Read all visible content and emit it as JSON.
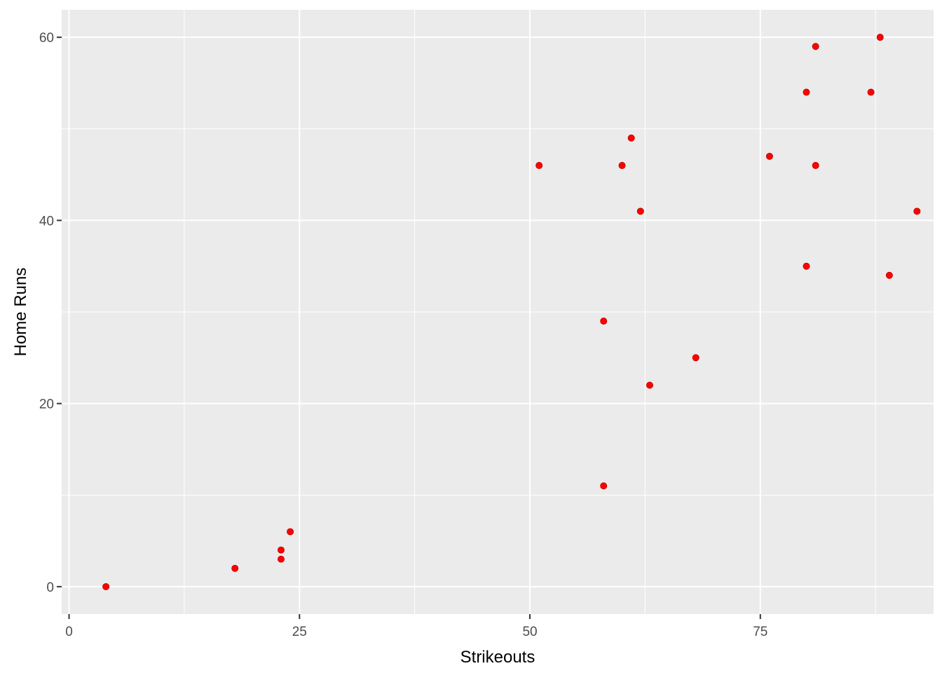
{
  "chart_data": {
    "type": "scatter",
    "title": "",
    "xlabel": "Strikeouts",
    "ylabel": "Home Runs",
    "xlim": [
      -0.8,
      93.8
    ],
    "ylim": [
      -3,
      63
    ],
    "x_ticks": [
      0,
      25,
      50,
      75
    ],
    "x_tick_labels": [
      "0",
      "25",
      "50",
      "75"
    ],
    "y_ticks": [
      0,
      20,
      40,
      60
    ],
    "y_tick_labels": [
      "0",
      "20",
      "40",
      "60"
    ],
    "grid": true,
    "legend": "none",
    "colors": {
      "panel_background": "#EBEBEB",
      "grid": "#FFFFFF",
      "point": "#FF0000",
      "point_outline": "#C80000",
      "tick_text": "#4D4D4D",
      "axis_title": "#000000"
    },
    "points": [
      {
        "x": 4,
        "y": 0
      },
      {
        "x": 18,
        "y": 2
      },
      {
        "x": 23,
        "y": 3
      },
      {
        "x": 23,
        "y": 4
      },
      {
        "x": 24,
        "y": 6
      },
      {
        "x": 51,
        "y": 46
      },
      {
        "x": 58,
        "y": 11
      },
      {
        "x": 58,
        "y": 29
      },
      {
        "x": 60,
        "y": 46
      },
      {
        "x": 61,
        "y": 49
      },
      {
        "x": 62,
        "y": 41
      },
      {
        "x": 63,
        "y": 22
      },
      {
        "x": 68,
        "y": 25
      },
      {
        "x": 76,
        "y": 47
      },
      {
        "x": 80,
        "y": 35
      },
      {
        "x": 80,
        "y": 54
      },
      {
        "x": 81,
        "y": 59
      },
      {
        "x": 81,
        "y": 46
      },
      {
        "x": 87,
        "y": 54
      },
      {
        "x": 88,
        "y": 60
      },
      {
        "x": 89,
        "y": 34
      },
      {
        "x": 92,
        "y": 41
      }
    ]
  }
}
